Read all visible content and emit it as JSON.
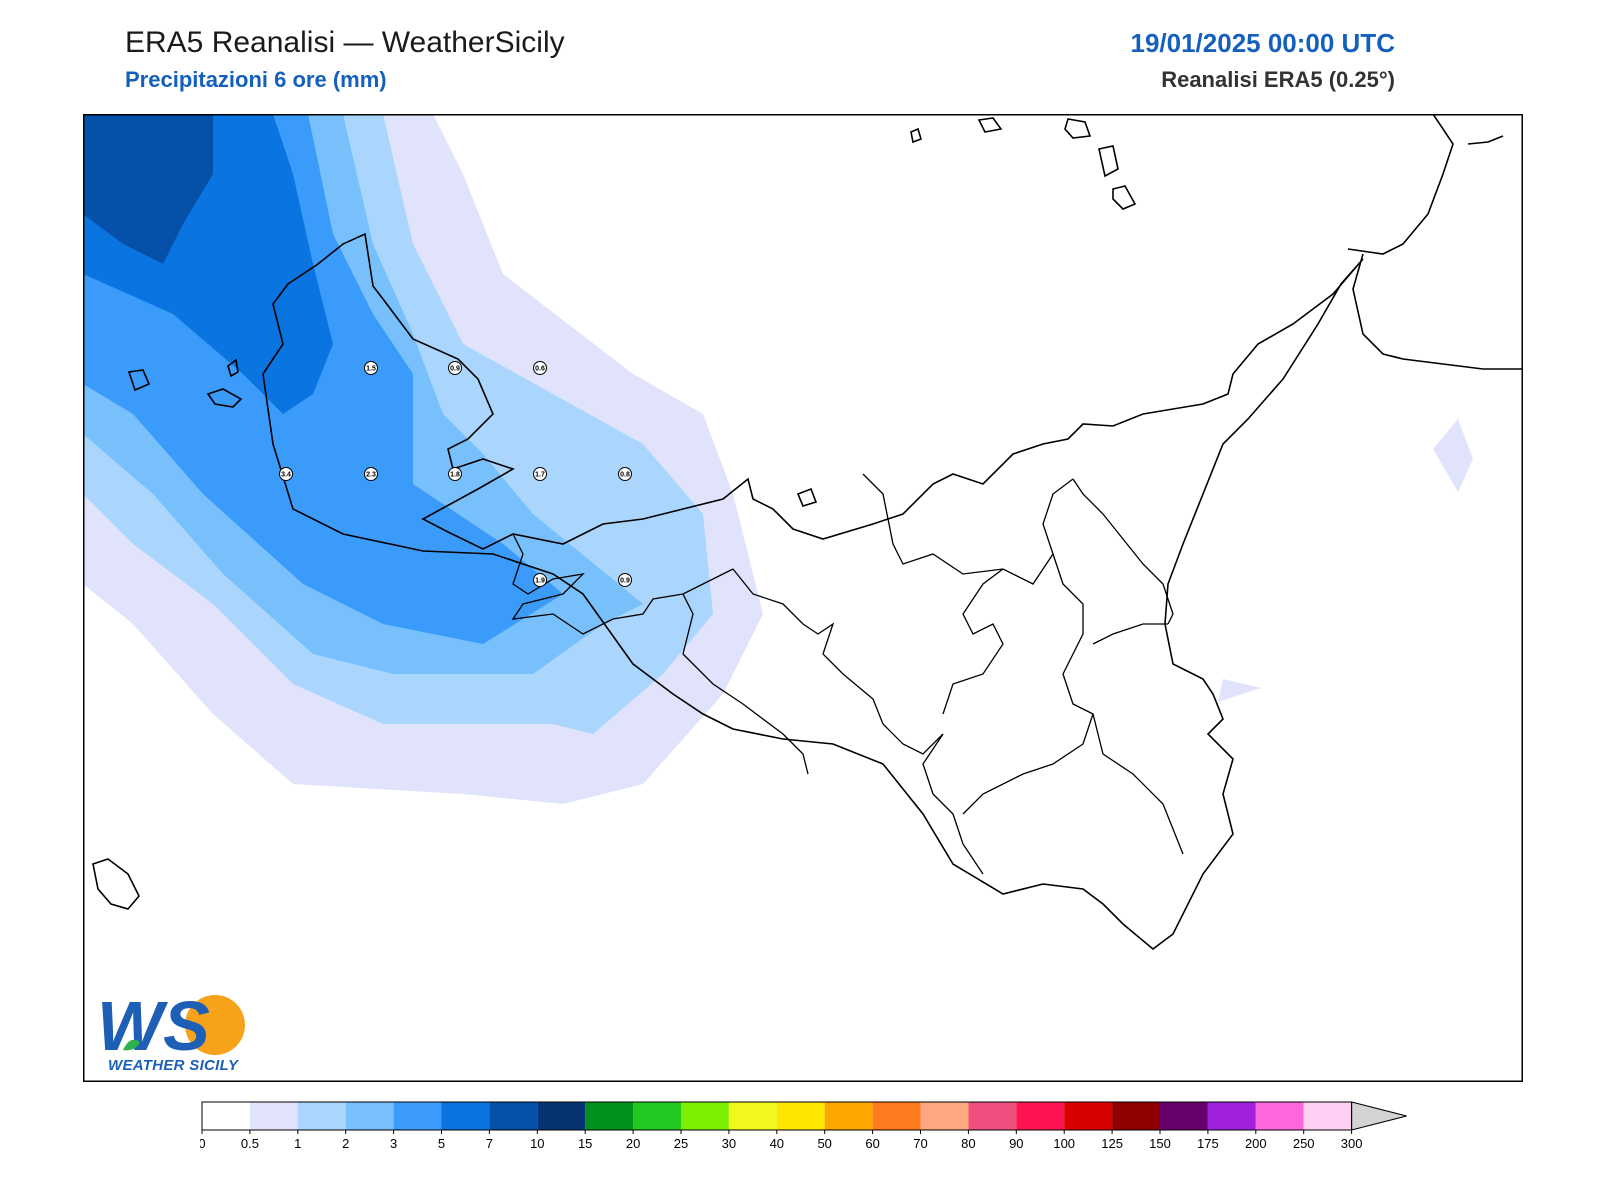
{
  "header": {
    "title": "ERA5 Reanalisi — WeatherSicily",
    "subtitle": "Precipitazioni 6 ore (mm)",
    "datetime": "19/01/2025 00:00 UTC",
    "source": "Reanalisi ERA5 (0.25°)"
  },
  "logo": {
    "text": "WEATHER SICILY",
    "mark": "WS"
  },
  "station_values": [
    {
      "id": "s1",
      "value": "1.5"
    },
    {
      "id": "s2",
      "value": "0.9"
    },
    {
      "id": "s3",
      "value": "0.6"
    },
    {
      "id": "s4",
      "value": "3.4"
    },
    {
      "id": "s5",
      "value": "2.3"
    },
    {
      "id": "s6",
      "value": "1.8"
    },
    {
      "id": "s7",
      "value": "1.7"
    },
    {
      "id": "s8",
      "value": "0.8"
    },
    {
      "id": "s9",
      "value": "1.9"
    },
    {
      "id": "s10",
      "value": "0.9"
    }
  ],
  "colorbar": {
    "ticks": [
      "0",
      "0.5",
      "1",
      "2",
      "3",
      "5",
      "7",
      "10",
      "15",
      "20",
      "25",
      "30",
      "40",
      "50",
      "60",
      "70",
      "80",
      "90",
      "100",
      "125",
      "150",
      "175",
      "200",
      "250",
      "300"
    ],
    "colors": [
      "#ffffff",
      "#e0e3fb",
      "#aad6fd",
      "#78c0fc",
      "#3a9bfb",
      "#0a74e0",
      "#0550a8",
      "#063473",
      "#00901e",
      "#20c820",
      "#7cf000",
      "#f0f81c",
      "#fee600",
      "#fea600",
      "#fe7a1c",
      "#fea880",
      "#ee4f7f",
      "#fe1450",
      "#d90000",
      "#900000",
      "#66006d",
      "#a020de",
      "#fe66dd",
      "#ffd0f4"
    ],
    "extend_color": "#d3d3d3"
  }
}
